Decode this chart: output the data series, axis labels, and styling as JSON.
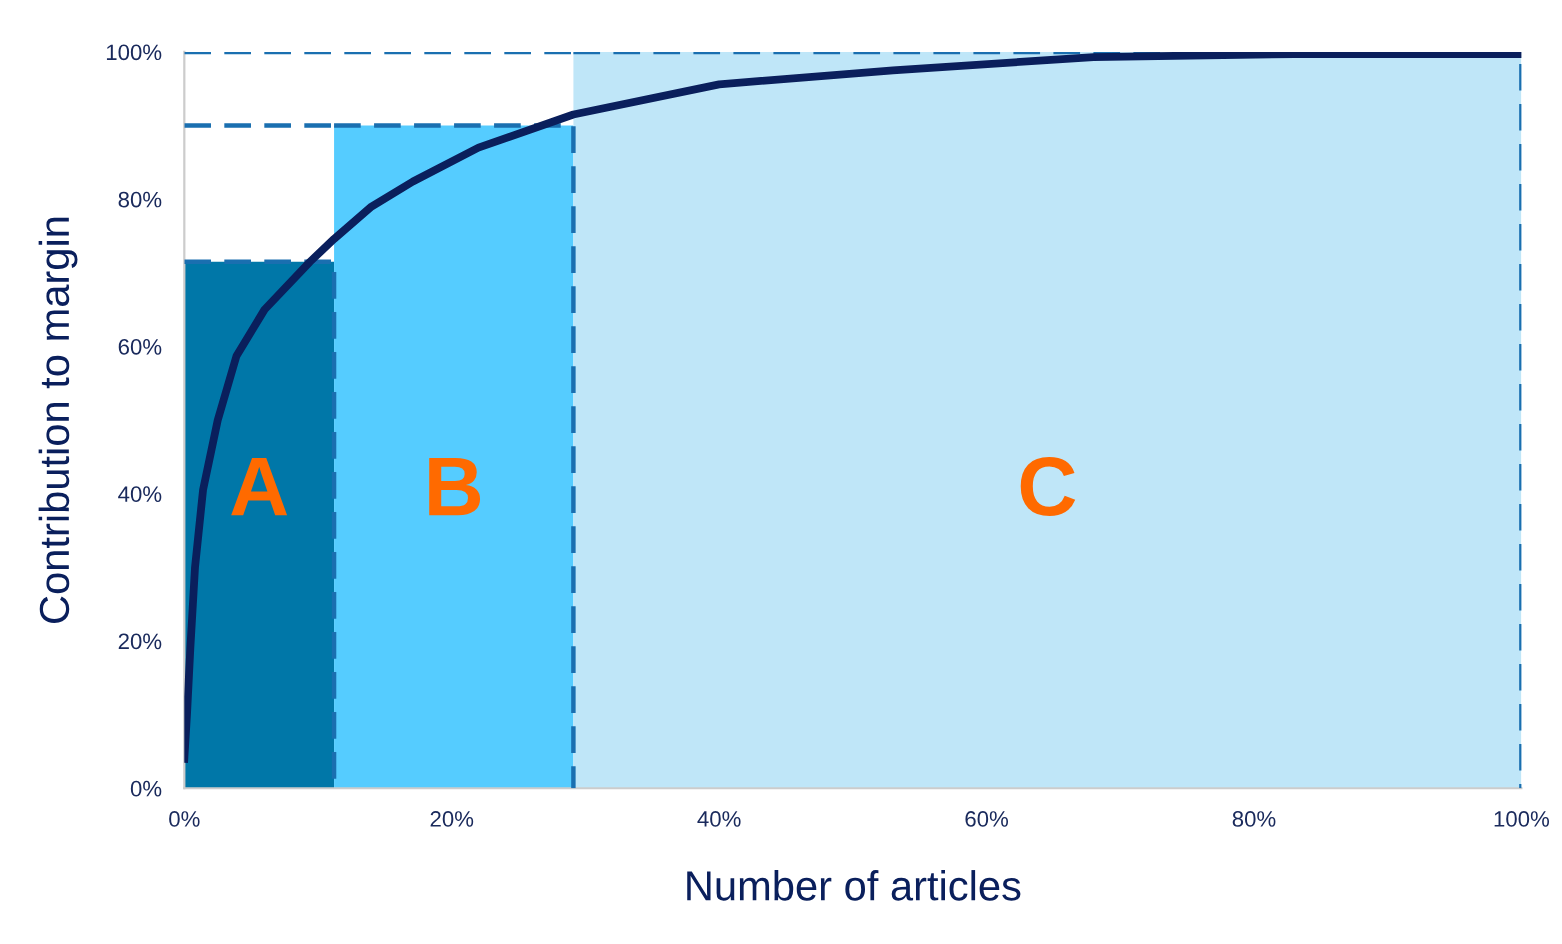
{
  "chart_data": {
    "type": "area",
    "xlabel": "Number of articles",
    "ylabel": "Contribution to margin",
    "xlim": [
      0,
      100
    ],
    "ylim": [
      0,
      100
    ],
    "xticks": [
      {
        "value": 0,
        "label": "0%"
      },
      {
        "value": 20,
        "label": "20%"
      },
      {
        "value": 40,
        "label": "40%"
      },
      {
        "value": 60,
        "label": "60%"
      },
      {
        "value": 80,
        "label": "80%"
      },
      {
        "value": 100,
        "label": "100%"
      }
    ],
    "yticks": [
      {
        "value": 0,
        "label": "0%"
      },
      {
        "value": 20,
        "label": "20%"
      },
      {
        "value": 40,
        "label": "40%"
      },
      {
        "value": 60,
        "label": "60%"
      },
      {
        "value": 80,
        "label": "80%"
      },
      {
        "value": 100,
        "label": "100%"
      }
    ],
    "grid": false,
    "legend": false,
    "line_style": "dashed",
    "series": [
      {
        "color": "#0077a8",
        "x": [
          0,
          11.2
        ],
        "values": [
          71.5,
          71.5
        ]
      },
      {
        "color": "#55ccff",
        "x": [
          11.2,
          29.1
        ],
        "values": [
          90,
          90
        ]
      },
      {
        "color": "#bfe6f8",
        "x": [
          29.1,
          100
        ],
        "values": [
          100,
          100
        ]
      },
      {
        "type": "line",
        "color": "#0a1f5c",
        "line_style": "solid",
        "x": [
          0,
          0.2,
          0.45,
          0.8,
          1.4,
          2.5,
          3.9,
          6,
          9.4,
          11.2,
          14,
          17.1,
          22,
          29.1,
          40,
          53,
          68,
          83,
          100
        ],
        "values": [
          4,
          10,
          19,
          30,
          40.5,
          50,
          58.7,
          65,
          71.5,
          74.6,
          79,
          82.4,
          87,
          91.5,
          95.6,
          97.5,
          99.3,
          99.7,
          99.7
        ]
      }
    ],
    "annotations": [
      "A",
      "B",
      "C"
    ]
  }
}
